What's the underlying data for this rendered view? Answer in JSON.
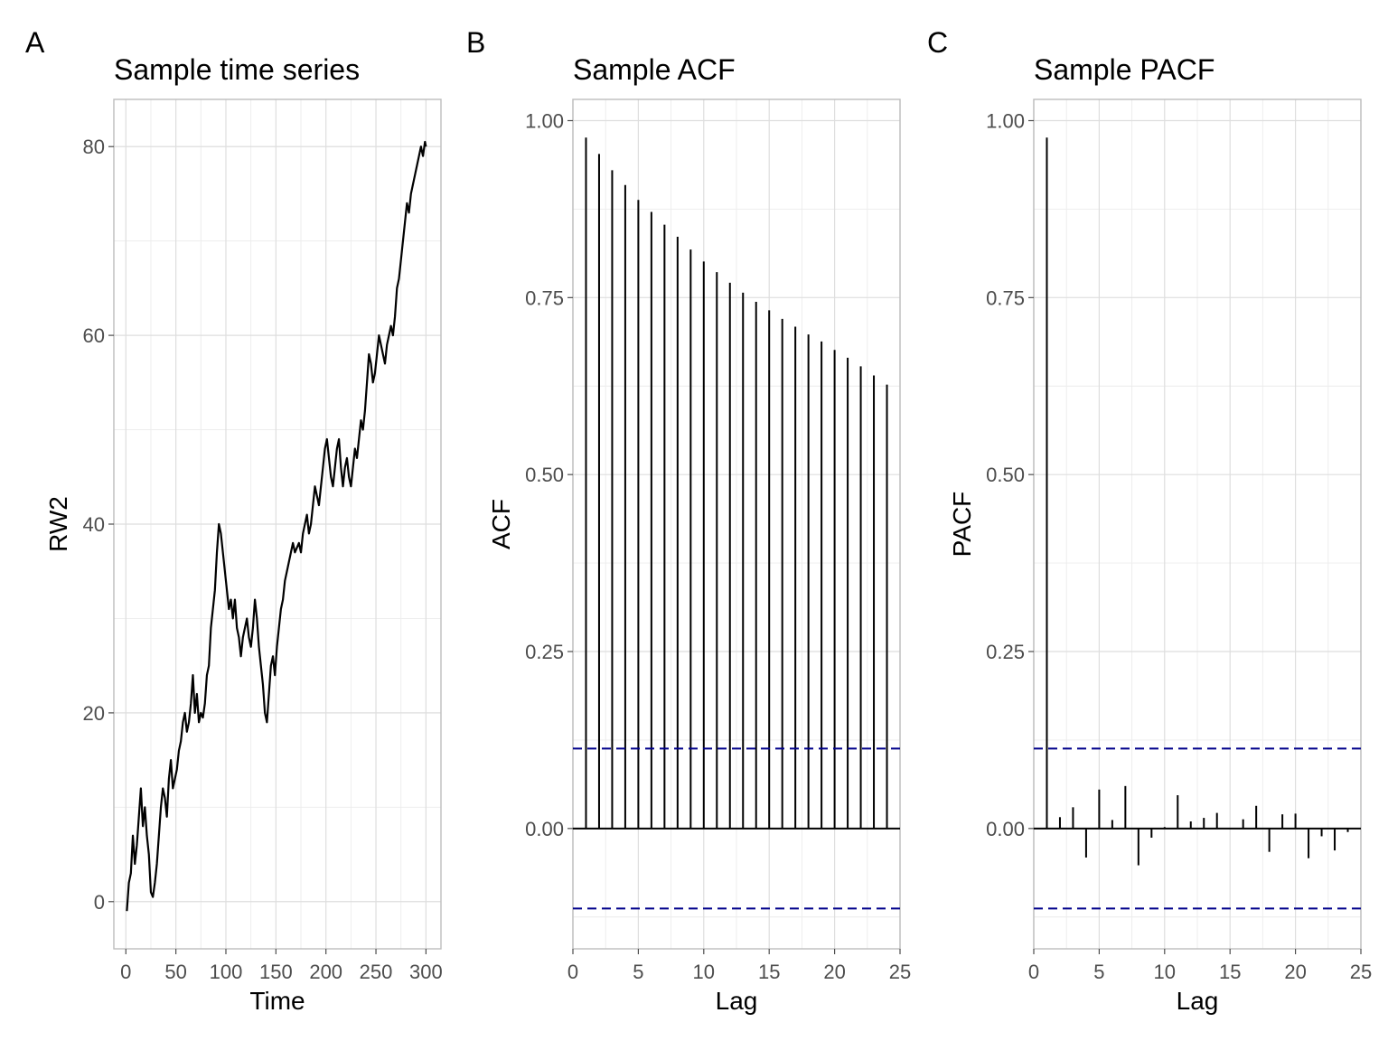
{
  "chart_data": [
    {
      "panel_tag": "A",
      "type": "line",
      "title": "Sample time series",
      "xlabel": "Time",
      "ylabel": "RW2",
      "xlim": [
        -12,
        315
      ],
      "ylim": [
        -5,
        85
      ],
      "xticks": [
        0,
        50,
        100,
        150,
        200,
        250,
        300
      ],
      "yticks": [
        0,
        20,
        40,
        60,
        80
      ],
      "xminor": [
        25,
        75,
        125,
        175,
        225,
        275
      ],
      "yminor": [
        10,
        30,
        50,
        70
      ],
      "grid": true,
      "line_color": "#000000",
      "series": [
        {
          "x": [
            1,
            3,
            5,
            7,
            9,
            11,
            13,
            15,
            17,
            19,
            21,
            23,
            25,
            27,
            29,
            31,
            33,
            35,
            37,
            39,
            41,
            43,
            45,
            47,
            49,
            51,
            53,
            55,
            57,
            59,
            61,
            63,
            65,
            67,
            69,
            71,
            73,
            75,
            77,
            79,
            81,
            83,
            85,
            87,
            89,
            91,
            93,
            95,
            97,
            99,
            101,
            103,
            105,
            107,
            109,
            111,
            113,
            115,
            117,
            119,
            121,
            123,
            125,
            127,
            129,
            131,
            133,
            135,
            137,
            139,
            141,
            143,
            145,
            147,
            149,
            151,
            153,
            155,
            157,
            159,
            161,
            163,
            165,
            167,
            169,
            171,
            173,
            175,
            177,
            179,
            181,
            183,
            185,
            187,
            189,
            191,
            193,
            195,
            197,
            199,
            201,
            203,
            205,
            207,
            209,
            211,
            213,
            215,
            217,
            219,
            221,
            223,
            225,
            227,
            229,
            231,
            233,
            235,
            237,
            239,
            241,
            243,
            245,
            247,
            249,
            251,
            253,
            255,
            257,
            259,
            261,
            263,
            265,
            267,
            269,
            271,
            273,
            275,
            277,
            279,
            281,
            283,
            285,
            287,
            289,
            291,
            293,
            295,
            297,
            299,
            300
          ],
          "y": [
            -1,
            2,
            3,
            7,
            4,
            6,
            9,
            12,
            8,
            10,
            7,
            5,
            1,
            0.5,
            2,
            4,
            7,
            10,
            12,
            11,
            9,
            13,
            15,
            12,
            13,
            14,
            16,
            17,
            19,
            20,
            18,
            19,
            21,
            24,
            20,
            22,
            19,
            20,
            19.5,
            21,
            24,
            25,
            29,
            31,
            33,
            37,
            40,
            39,
            37,
            35,
            33,
            31,
            32,
            30,
            32,
            29,
            28,
            26,
            28,
            29,
            30,
            28,
            27,
            29,
            32,
            30,
            27,
            25,
            23,
            20,
            19,
            22,
            25,
            26,
            24,
            27,
            29,
            31,
            32,
            34,
            35,
            36,
            37,
            38,
            37,
            37.5,
            38,
            37,
            39,
            40,
            41,
            39,
            40,
            42,
            44,
            43,
            42,
            44,
            46,
            48,
            49,
            47,
            45,
            44,
            46,
            48,
            49,
            46,
            44,
            46,
            47,
            45,
            44,
            46,
            48,
            47,
            49,
            51,
            50,
            52,
            55,
            58,
            57,
            55,
            56,
            58,
            60,
            59,
            58,
            57,
            59,
            60,
            61,
            60,
            62,
            65,
            66,
            68,
            70,
            72,
            74,
            73,
            75,
            76,
            77,
            78,
            79,
            80,
            79,
            80.5,
            80
          ],
          "note_units": "data units"
        }
      ]
    },
    {
      "panel_tag": "B",
      "type": "bar",
      "title": "Sample ACF",
      "xlabel": "Lag",
      "ylabel": "ACF",
      "xlim": [
        0,
        25
      ],
      "ylim": [
        -0.17,
        1.03
      ],
      "xticks": [
        0,
        5,
        10,
        15,
        20,
        25
      ],
      "yticks": [
        "0.00",
        "0.25",
        "0.50",
        "0.75",
        "1.00"
      ],
      "xminor": [
        2.5,
        7.5,
        12.5,
        17.5,
        22.5
      ],
      "yminor": [
        -0.125,
        0.125,
        0.375,
        0.625,
        0.875
      ],
      "grid": true,
      "confidence_band": 0.113,
      "band_color": "#00008b",
      "categories": [
        1,
        2,
        3,
        4,
        5,
        6,
        7,
        8,
        9,
        10,
        11,
        12,
        13,
        14,
        15,
        16,
        17,
        18,
        19,
        20,
        21,
        22,
        23,
        24
      ],
      "values": [
        0.976,
        0.953,
        0.93,
        0.909,
        0.888,
        0.871,
        0.853,
        0.836,
        0.818,
        0.801,
        0.786,
        0.771,
        0.757,
        0.744,
        0.732,
        0.72,
        0.709,
        0.698,
        0.688,
        0.676,
        0.665,
        0.653,
        0.64,
        0.627
      ]
    },
    {
      "panel_tag": "C",
      "type": "bar",
      "title": "Sample PACF",
      "xlabel": "Lag",
      "ylabel": "PACF",
      "xlim": [
        0,
        25
      ],
      "ylim": [
        -0.17,
        1.03
      ],
      "xticks": [
        0,
        5,
        10,
        15,
        20,
        25
      ],
      "yticks": [
        "0.00",
        "0.25",
        "0.50",
        "0.75",
        "1.00"
      ],
      "xminor": [
        2.5,
        7.5,
        12.5,
        17.5,
        22.5
      ],
      "yminor": [
        -0.125,
        0.125,
        0.375,
        0.625,
        0.875
      ],
      "grid": true,
      "confidence_band": 0.113,
      "band_color": "#00008b",
      "categories": [
        1,
        2,
        3,
        4,
        5,
        6,
        7,
        8,
        9,
        10,
        11,
        12,
        13,
        14,
        15,
        16,
        17,
        18,
        19,
        20,
        21,
        22,
        23,
        24
      ],
      "values": [
        0.976,
        0.016,
        0.03,
        -0.041,
        0.055,
        0.012,
        0.06,
        -0.052,
        -0.013,
        0.002,
        0.047,
        0.01,
        0.015,
        0.022,
        0.0,
        0.013,
        0.032,
        -0.033,
        0.02,
        0.021,
        -0.042,
        -0.011,
        -0.031,
        -0.005
      ]
    }
  ]
}
